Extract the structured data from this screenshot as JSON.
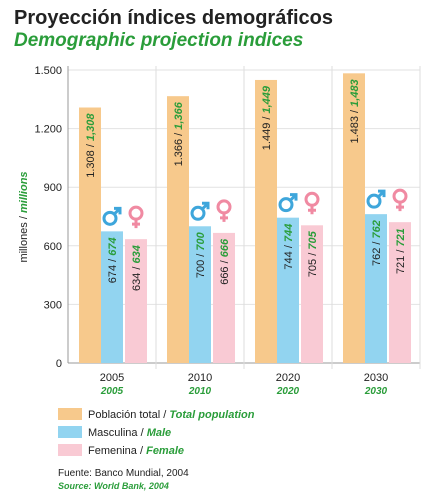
{
  "chart_data": {
    "type": "bar",
    "title": "Proyección índices demográficos",
    "subtitle": "Demographic projection indices",
    "y_label": [
      "millones /",
      "millions"
    ],
    "categories": [
      "2005",
      "2010",
      "2020",
      "2030"
    ],
    "series": [
      {
        "name": "Población total / Total population",
        "color": "#f7c98c",
        "values": [
          1308,
          1366,
          1449,
          1483
        ],
        "value_labels": [
          "1.308 / 1,308",
          "1.366 / 1,366",
          "1.449 / 1,449",
          "1.483 / 1,483"
        ]
      },
      {
        "name": "Masculina / Male",
        "color": "#92d4f0",
        "values": [
          674,
          700,
          744,
          762
        ],
        "value_labels": [
          "674 / 674",
          "700 / 700",
          "744 / 744",
          "762 / 762"
        ]
      },
      {
        "name": "Femenina / Female",
        "color": "#f9cad4",
        "values": [
          634,
          666,
          705,
          721
        ],
        "value_labels": [
          "634 / 634",
          "666 / 666",
          "705 / 705",
          "721 / 721"
        ]
      }
    ],
    "ylim": [
      0,
      1500
    ],
    "yticks": [
      0,
      300,
      600,
      900,
      {
        "value": 1200,
        "label": "1.200"
      },
      {
        "value": 1500,
        "label": "1.500"
      }
    ],
    "grid": true,
    "source": [
      "Fuente: Banco Mundial, 2004",
      "Source: World Bank, 2004"
    ]
  }
}
